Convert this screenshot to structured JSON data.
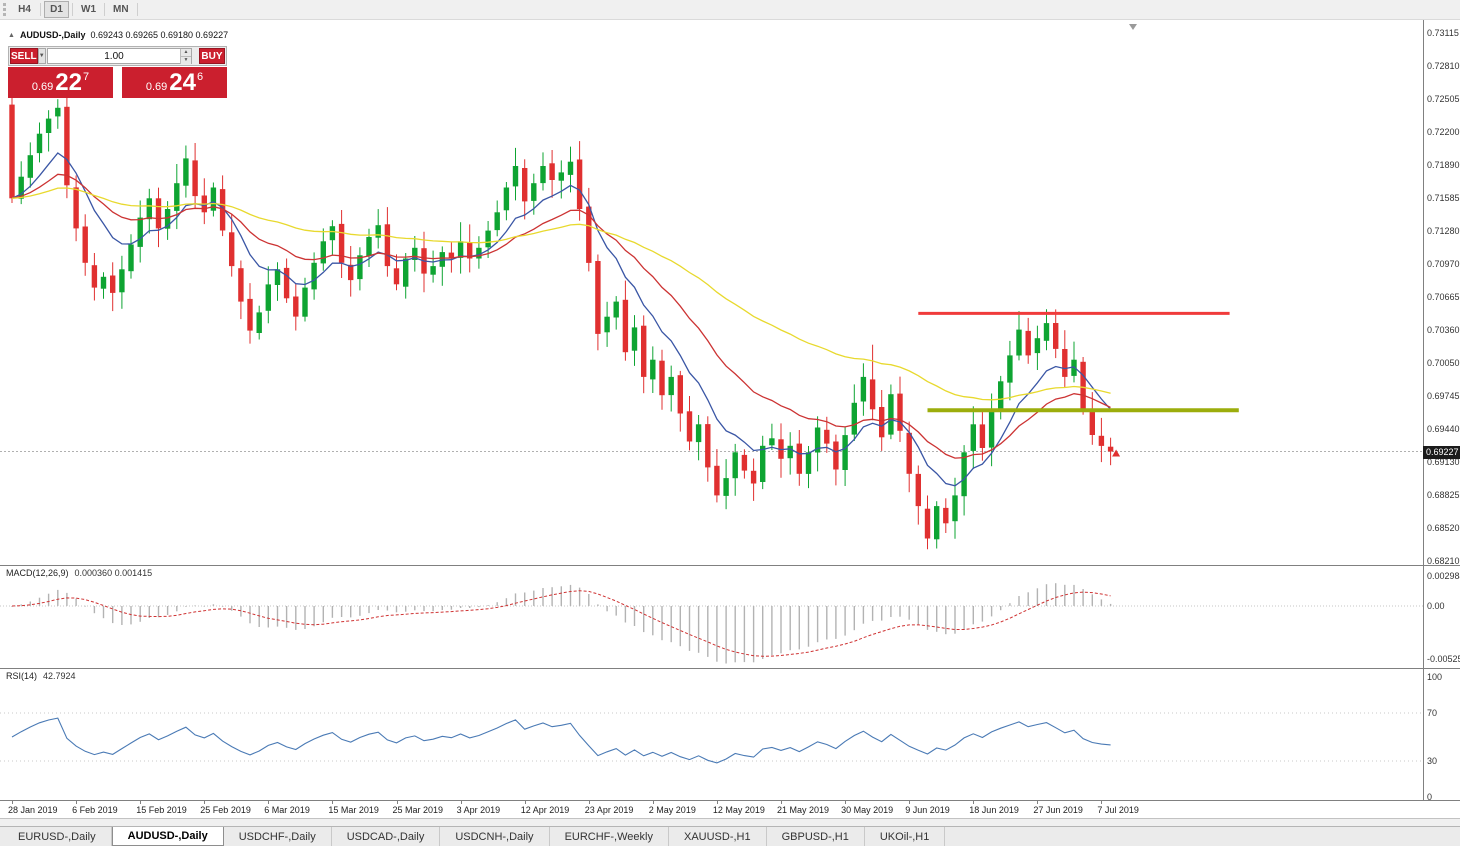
{
  "toolbar": {
    "timeframes": [
      "H4",
      "D1",
      "W1",
      "MN"
    ],
    "active": "D1"
  },
  "header": {
    "symbol": "AUDUSD-,Daily",
    "ohlc_text": "0.69243 0.69265 0.69180 0.69227"
  },
  "trade_panel": {
    "sell_label": "SELL",
    "buy_label": "BUY",
    "volume": "1.00",
    "sell_price": {
      "sm": "0.69",
      "big": "22",
      "sup": "7"
    },
    "buy_price": {
      "sm": "0.69",
      "big": "24",
      "sup": "6"
    }
  },
  "icons": {
    "dropdown": "▼",
    "spin_up": "▲",
    "spin_down": "▼",
    "collapse_triangle": "▲"
  },
  "chart_data": {
    "type": "candlestick",
    "symbol": "AUDUSD",
    "timeframe": "Daily",
    "current_price_label": "0.69227",
    "current_price": 0.69227,
    "y_labels": [
      "0.73115",
      "0.72810",
      "0.72505",
      "0.72200",
      "0.71890",
      "0.71585",
      "0.71280",
      "0.70970",
      "0.70665",
      "0.70360",
      "0.70050",
      "0.69745",
      "0.69440",
      "0.69130",
      "0.68825",
      "0.68520",
      "0.68210"
    ],
    "x_labels": [
      "28 Jan 2019",
      "6 Feb 2019",
      "15 Feb 2019",
      "25 Feb 2019",
      "6 Mar 2019",
      "15 Mar 2019",
      "25 Mar 2019",
      "3 Apr 2019",
      "12 Apr 2019",
      "23 Apr 2019",
      "2 May 2019",
      "12 May 2019",
      "21 May 2019",
      "30 May 2019",
      "9 Jun 2019",
      "18 Jun 2019",
      "27 Jun 2019",
      "7 Jul 2019"
    ],
    "label_step": 7,
    "open_first": 0.7245,
    "closes": [
      0.7158,
      0.7178,
      0.7198,
      0.7218,
      0.7232,
      0.7242,
      0.717,
      0.713,
      0.7098,
      0.7075,
      0.7085,
      0.707,
      0.7092,
      0.7115,
      0.714,
      0.7158,
      0.713,
      0.7148,
      0.7172,
      0.7195,
      0.716,
      0.7145,
      0.7168,
      0.7128,
      0.7095,
      0.7062,
      0.7035,
      0.7052,
      0.7078,
      0.7092,
      0.7065,
      0.7048,
      0.7075,
      0.7098,
      0.7118,
      0.7132,
      0.7098,
      0.7082,
      0.7105,
      0.7122,
      0.7133,
      0.7095,
      0.7078,
      0.7102,
      0.7112,
      0.7088,
      0.7095,
      0.7108,
      0.7102,
      0.7118,
      0.7102,
      0.7112,
      0.7128,
      0.7145,
      0.7168,
      0.7188,
      0.7155,
      0.7172,
      0.7188,
      0.7175,
      0.7182,
      0.7192,
      0.7148,
      0.7098,
      0.7032,
      0.7048,
      0.7062,
      0.7015,
      0.7038,
      0.6992,
      0.7008,
      0.6975,
      0.6992,
      0.6958,
      0.6932,
      0.6948,
      0.6908,
      0.6882,
      0.6898,
      0.6922,
      0.6905,
      0.6893,
      0.6928,
      0.6935,
      0.6916,
      0.6928,
      0.6902,
      0.6922,
      0.6945,
      0.693,
      0.6906,
      0.6938,
      0.6968,
      0.6992,
      0.6962,
      0.6936,
      0.6976,
      0.6942,
      0.6902,
      0.6872,
      0.6842,
      0.6872,
      0.6856,
      0.6882,
      0.6922,
      0.6948,
      0.6926,
      0.6962,
      0.6988,
      0.7012,
      0.7036,
      0.7012,
      0.7028,
      0.7042,
      0.7018,
      0.6992,
      0.7008,
      0.6962,
      0.6938,
      0.6928,
      0.69227
    ],
    "overrides": {
      "5": {
        "high": 0.725
      },
      "19": {
        "high": 0.7207
      },
      "61": {
        "high": 0.7206
      },
      "94": {
        "high": 0.7022
      },
      "100": {
        "low": 0.6832
      },
      "120": {
        "low": 0.691
      }
    },
    "moving_averages": [
      {
        "name": "fast",
        "period": 9,
        "color": "#3a56a5"
      },
      {
        "name": "medium",
        "period": 21,
        "color": "#cc3333"
      },
      {
        "name": "slow",
        "period": 55,
        "color": "#e8d92e"
      }
    ],
    "hlines": [
      {
        "name": "resistance",
        "price": 0.7051,
        "color": "#f03b3b",
        "width": 3,
        "from_index": 99,
        "to_index": 133
      },
      {
        "name": "support",
        "price": 0.6961,
        "color": "#9cad0c",
        "width": 4,
        "from_index": 100,
        "to_index": 134
      }
    ],
    "colors": {
      "up": "#0ea432",
      "down": "#e03030",
      "current_line": "#b0b0b0",
      "macd_bar": "#b3b3b3",
      "macd_signal": "#cf3333",
      "rsi_line": "#4a7ab5"
    },
    "macd": {
      "title": "MACD(12,26,9)",
      "values": "0.000360 0.001415",
      "fast": 12,
      "slow": 26,
      "signal": 9,
      "scale_labels": [
        "0.002984",
        "0.00",
        "-0.005250"
      ],
      "scale_values": [
        0.002984,
        0,
        -0.00525
      ]
    },
    "rsi": {
      "title": "RSI(14)",
      "value": "42.7924",
      "period": 14,
      "scale_labels": [
        "100",
        "70",
        "30",
        "0"
      ],
      "scale_values": [
        100,
        70,
        30,
        0
      ],
      "levels": [
        70,
        30
      ]
    }
  },
  "tabs": [
    "EURUSD-,Daily",
    "AUDUSD-,Daily",
    "USDCHF-,Daily",
    "USDCAD-,Daily",
    "USDCNH-,Daily",
    "EURCHF-,Weekly",
    "XAUUSD-,H1",
    "GBPUSD-,H1",
    "UKOil-,H1"
  ],
  "active_tab_index": 1
}
